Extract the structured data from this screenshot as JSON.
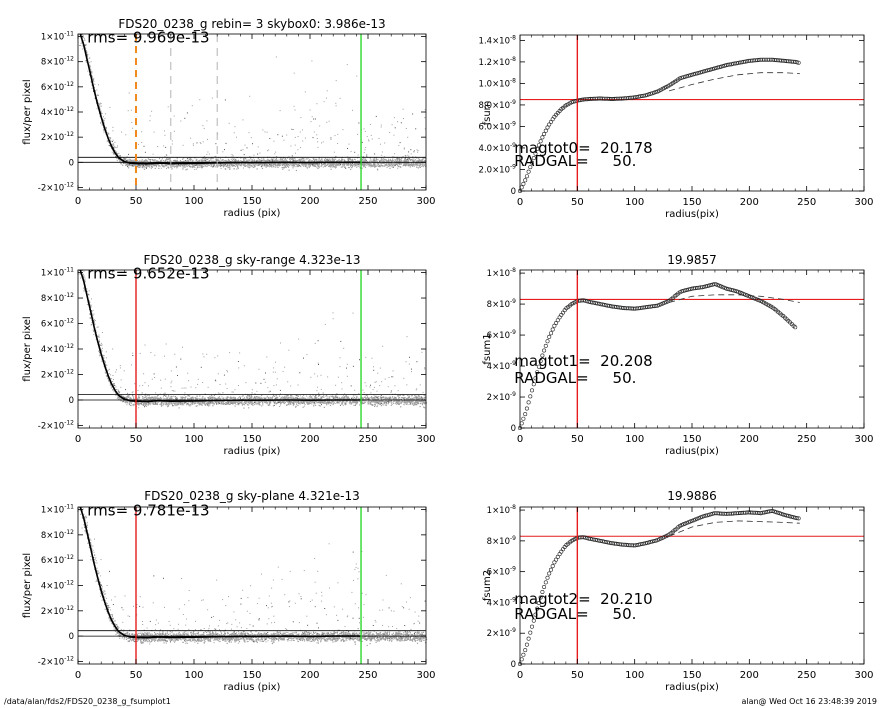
{
  "footer": {
    "left": "/data/alan/fds2/FDS20_0238_g_fsumplot1",
    "right": "alan@  Wed Oct 16 23:48:39 2019"
  },
  "colors": {
    "scatter": "#a0a0a0",
    "profile": "#000000",
    "red_line": "#e81c1c",
    "green_line": "#2ed82e",
    "orange_dash": "#f08a1e",
    "gray_dash": "#b4b4b4"
  },
  "chart_data": [
    {
      "id": "profile-1",
      "type": "scatter",
      "title": "FDS20_0238_g rebin= 3    skybox0:  3.986e-13",
      "xlabel": "radius (pix)",
      "ylabel": "flux/per pixel",
      "xlim": [
        0,
        300
      ],
      "ylim": [
        -2.2e-12,
        1.02e-11
      ],
      "x_ticks": [
        0,
        50,
        100,
        150,
        200,
        250,
        300
      ],
      "y_ticks": [
        {
          "v": 1e-11,
          "m": "1×10",
          "e": "-11"
        },
        {
          "v": 8e-12,
          "m": "8×10",
          "e": "-12"
        },
        {
          "v": 6e-12,
          "m": "6×10",
          "e": "-12"
        },
        {
          "v": 4e-12,
          "m": "4×10",
          "e": "-12"
        },
        {
          "v": 2e-12,
          "m": "2×10",
          "e": "-12"
        },
        {
          "v": 0,
          "m": "0",
          "e": ""
        },
        {
          "v": -2e-12,
          "m": "-2×10",
          "e": "-12"
        }
      ],
      "annotations": [
        {
          "text": "rms= 9.969e-13",
          "x": 8,
          "y": 1e-11
        }
      ],
      "vlines": [
        {
          "x": 50,
          "style": "orange-dash"
        },
        {
          "x": 80,
          "style": "gray-dash"
        },
        {
          "x": 120,
          "style": "gray-dash"
        },
        {
          "x": 244,
          "style": "green"
        }
      ],
      "hlines": [
        {
          "y": 4e-13
        },
        {
          "y": 0
        }
      ],
      "profile": {
        "x": [
          2,
          5,
          8,
          11,
          14,
          17,
          20,
          23,
          26,
          29,
          32,
          35,
          40,
          45,
          50,
          60,
          70,
          80,
          100,
          120,
          140,
          160,
          180,
          200,
          220,
          244
        ],
        "y": [
          1.02e-11,
          9.3e-12,
          8.1e-12,
          6.9e-12,
          5.7e-12,
          4.6e-12,
          3.6e-12,
          2.7e-12,
          1.9e-12,
          1.25e-12,
          7.5e-13,
          3.6e-13,
          6e-14,
          -6e-14,
          -1e-13,
          -1.2e-13,
          -6e-14,
          -1e-13,
          -8e-14,
          -4e-14,
          -2e-14,
          -2e-14,
          0,
          -2e-14,
          0,
          0
        ]
      },
      "scatter": {
        "upper_envelope": 1.2e-12,
        "lower_envelope": -1.3e-12
      }
    },
    {
      "id": "growth-1",
      "type": "scatter",
      "title": "",
      "xlabel": "radius(pix)",
      "ylabel": "fsum",
      "xlim": [
        0,
        300
      ],
      "ylim": [
        0,
        1.45e-08
      ],
      "x_ticks": [
        0,
        50,
        100,
        150,
        200,
        250,
        300
      ],
      "y_ticks": [
        {
          "v": 1.4e-08,
          "m": "1.4×10",
          "e": "-8"
        },
        {
          "v": 1.2e-08,
          "m": "1.2×10",
          "e": "-8"
        },
        {
          "v": 1e-08,
          "m": "1.0×10",
          "e": "-8"
        },
        {
          "v": 8e-09,
          "m": "8.0×10",
          "e": "-9"
        },
        {
          "v": 6e-09,
          "m": "6.0×10",
          "e": "-9"
        },
        {
          "v": 4e-09,
          "m": "4.0×10",
          "e": "-9"
        },
        {
          "v": 2e-09,
          "m": "2.0×10",
          "e": "-9"
        },
        {
          "v": 0,
          "m": "0",
          "e": ""
        }
      ],
      "annotations": [
        {
          "text": "magtot0=  20.178",
          "x": -5,
          "y": 4.1e-09
        },
        {
          "text": "RADGAL=     50.",
          "x": -5,
          "y": 2.9e-09
        }
      ],
      "vlines": [
        {
          "x": 50,
          "style": "red"
        }
      ],
      "hlines": [
        {
          "y": 8.5e-09
        }
      ],
      "curve": {
        "x": [
          0,
          5,
          10,
          15,
          20,
          25,
          30,
          35,
          40,
          45,
          50,
          55,
          60,
          70,
          80,
          90,
          100,
          110,
          120,
          130,
          140,
          150,
          160,
          170,
          180,
          190,
          200,
          210,
          220,
          230,
          240,
          244
        ],
        "y": [
          0,
          1.1e-09,
          2.5e-09,
          3.9e-09,
          5.1e-09,
          6.1e-09,
          6.9e-09,
          7.5e-09,
          7.95e-09,
          8.25e-09,
          8.4e-09,
          8.5e-09,
          8.55e-09,
          8.6e-09,
          8.55e-09,
          8.6e-09,
          8.7e-09,
          8.9e-09,
          9.25e-09,
          9.8e-09,
          1.05e-08,
          1.08e-08,
          1.11e-08,
          1.14e-08,
          1.17e-08,
          1.19e-08,
          1.21e-08,
          1.22e-08,
          1.22e-08,
          1.21e-08,
          1.2e-08,
          1.19e-08
        ]
      },
      "dashed": {
        "x": [
          130,
          150,
          170,
          190,
          210,
          230,
          244
        ],
        "y": [
          9.3e-09,
          9.9e-09,
          1.04e-08,
          1.08e-08,
          1.1e-08,
          1.1e-08,
          1.09e-08
        ]
      }
    },
    {
      "id": "profile-2",
      "type": "scatter",
      "title": "FDS20_0238_g sky-range  4.323e-13",
      "xlabel": "radius (pix)",
      "ylabel": "flux/per pixel",
      "xlim": [
        0,
        300
      ],
      "ylim": [
        -2.2e-12,
        1.02e-11
      ],
      "x_ticks": [
        0,
        50,
        100,
        150,
        200,
        250,
        300
      ],
      "y_ticks": [
        {
          "v": 1e-11,
          "m": "1×10",
          "e": "-11"
        },
        {
          "v": 8e-12,
          "m": "8×10",
          "e": "-12"
        },
        {
          "v": 6e-12,
          "m": "6×10",
          "e": "-12"
        },
        {
          "v": 4e-12,
          "m": "4×10",
          "e": "-12"
        },
        {
          "v": 2e-12,
          "m": "2×10",
          "e": "-12"
        },
        {
          "v": 0,
          "m": "0",
          "e": ""
        },
        {
          "v": -2e-12,
          "m": "-2×10",
          "e": "-12"
        }
      ],
      "annotations": [
        {
          "text": "rms= 9.652e-13",
          "x": 8,
          "y": 1e-11
        }
      ],
      "vlines": [
        {
          "x": 50,
          "style": "red"
        },
        {
          "x": 244,
          "style": "green"
        }
      ],
      "hlines": [
        {
          "y": 4.3e-13
        },
        {
          "y": 0
        }
      ],
      "profile": {
        "x": [
          2,
          5,
          8,
          11,
          14,
          17,
          20,
          23,
          26,
          29,
          32,
          35,
          40,
          45,
          50,
          60,
          70,
          80,
          100,
          120,
          140,
          160,
          180,
          200,
          220,
          244
        ],
        "y": [
          1.02e-11,
          9.3e-12,
          8.1e-12,
          6.9e-12,
          5.7e-12,
          4.6e-12,
          3.6e-12,
          2.7e-12,
          1.9e-12,
          1.25e-12,
          7.5e-13,
          3.6e-13,
          6e-14,
          -6e-14,
          -1e-13,
          -1.2e-13,
          -6e-14,
          -1e-13,
          -8e-14,
          -4e-14,
          -2e-14,
          -2e-14,
          0,
          -2e-14,
          0,
          0
        ]
      },
      "scatter": {
        "upper_envelope": 1.2e-12,
        "lower_envelope": -1.3e-12
      }
    },
    {
      "id": "growth-2",
      "type": "scatter",
      "title": "19.9857",
      "xlabel": "radius(pix)",
      "ylabel": "fsum1",
      "xlim": [
        0,
        300
      ],
      "ylim": [
        0,
        1.02e-08
      ],
      "x_ticks": [
        0,
        50,
        100,
        150,
        200,
        250,
        300
      ],
      "y_ticks": [
        {
          "v": 1e-08,
          "m": "1×10",
          "e": "-8"
        },
        {
          "v": 8e-09,
          "m": "8×10",
          "e": "-9"
        },
        {
          "v": 6e-09,
          "m": "6×10",
          "e": "-9"
        },
        {
          "v": 4e-09,
          "m": "4×10",
          "e": "-9"
        },
        {
          "v": 2e-09,
          "m": "2×10",
          "e": "-9"
        },
        {
          "v": 0,
          "m": "0",
          "e": ""
        }
      ],
      "annotations": [
        {
          "text": "magtot1=  20.208",
          "x": -5,
          "y": 4.4e-09
        },
        {
          "text": "RADGAL=     50.",
          "x": -5,
          "y": 3.3e-09
        }
      ],
      "vlines": [
        {
          "x": 50,
          "style": "red"
        }
      ],
      "hlines": [
        {
          "y": 8.3e-09
        }
      ],
      "curve": {
        "x": [
          0,
          5,
          10,
          15,
          20,
          25,
          30,
          35,
          40,
          45,
          50,
          55,
          60,
          70,
          80,
          90,
          100,
          110,
          120,
          130,
          140,
          150,
          160,
          170,
          180,
          190,
          200,
          210,
          220,
          230,
          240
        ],
        "y": [
          0,
          1e-09,
          2.3e-09,
          3.6e-09,
          4.8e-09,
          5.8e-09,
          6.6e-09,
          7.2e-09,
          7.7e-09,
          8e-09,
          8.2e-09,
          8.25e-09,
          8.15e-09,
          8e-09,
          7.85e-09,
          7.75e-09,
          7.7e-09,
          7.8e-09,
          7.9e-09,
          8.2e-09,
          8.8e-09,
          9e-09,
          9.1e-09,
          9.3e-09,
          9e-09,
          8.8e-09,
          8.5e-09,
          8.2e-09,
          7.8e-09,
          7.2e-09,
          6.5e-09
        ]
      },
      "dashed": {
        "x": [
          130,
          150,
          170,
          190,
          210,
          230,
          244
        ],
        "y": [
          8.1e-09,
          8.5e-09,
          8.6e-09,
          8.6e-09,
          8.5e-09,
          8.3e-09,
          8.1e-09
        ]
      }
    },
    {
      "id": "profile-3",
      "type": "scatter",
      "title": "FDS20_0238_g sky-plane  4.321e-13",
      "xlabel": "radius (pix)",
      "ylabel": "flux/per pixel",
      "xlim": [
        0,
        300
      ],
      "ylim": [
        -2.2e-12,
        1.02e-11
      ],
      "x_ticks": [
        0,
        50,
        100,
        150,
        200,
        250,
        300
      ],
      "y_ticks": [
        {
          "v": 1e-11,
          "m": "1×10",
          "e": "-11"
        },
        {
          "v": 8e-12,
          "m": "8×10",
          "e": "-12"
        },
        {
          "v": 6e-12,
          "m": "6×10",
          "e": "-12"
        },
        {
          "v": 4e-12,
          "m": "4×10",
          "e": "-12"
        },
        {
          "v": 2e-12,
          "m": "2×10",
          "e": "-12"
        },
        {
          "v": 0,
          "m": "0",
          "e": ""
        },
        {
          "v": -2e-12,
          "m": "-2×10",
          "e": "-12"
        }
      ],
      "annotations": [
        {
          "text": "rms= 9.781e-13",
          "x": 8,
          "y": 1e-11
        }
      ],
      "vlines": [
        {
          "x": 50,
          "style": "red"
        },
        {
          "x": 244,
          "style": "green"
        }
      ],
      "hlines": [
        {
          "y": 4.3e-13
        },
        {
          "y": 0
        }
      ],
      "profile": {
        "x": [
          2,
          5,
          8,
          11,
          14,
          17,
          20,
          23,
          26,
          29,
          32,
          35,
          40,
          45,
          50,
          60,
          70,
          80,
          100,
          120,
          140,
          160,
          180,
          200,
          220,
          244
        ],
        "y": [
          1.02e-11,
          9.3e-12,
          8.1e-12,
          6.9e-12,
          5.7e-12,
          4.6e-12,
          3.6e-12,
          2.7e-12,
          1.9e-12,
          1.25e-12,
          7.5e-13,
          3.6e-13,
          6e-14,
          -6e-14,
          -1e-13,
          -1.2e-13,
          -6e-14,
          -1e-13,
          -8e-14,
          -4e-14,
          -2e-14,
          -2e-14,
          0,
          -2e-14,
          0,
          0
        ]
      },
      "scatter": {
        "upper_envelope": 1.2e-12,
        "lower_envelope": -1.3e-12
      }
    },
    {
      "id": "growth-3",
      "type": "scatter",
      "title": "19.9886",
      "xlabel": "radius(pix)",
      "ylabel": "fsum2",
      "xlim": [
        0,
        300
      ],
      "ylim": [
        0,
        1.02e-08
      ],
      "x_ticks": [
        0,
        50,
        100,
        150,
        200,
        250,
        300
      ],
      "y_ticks": [
        {
          "v": 1e-08,
          "m": "1×10",
          "e": "-8"
        },
        {
          "v": 8e-09,
          "m": "8×10",
          "e": "-9"
        },
        {
          "v": 6e-09,
          "m": "6×10",
          "e": "-9"
        },
        {
          "v": 4e-09,
          "m": "4×10",
          "e": "-9"
        },
        {
          "v": 2e-09,
          "m": "2×10",
          "e": "-9"
        },
        {
          "v": 0,
          "m": "0",
          "e": ""
        }
      ],
      "annotations": [
        {
          "text": "magtot2=  20.210",
          "x": -5,
          "y": 4.3e-09
        },
        {
          "text": "RADGAL=     50.",
          "x": -5,
          "y": 3.3e-09
        }
      ],
      "vlines": [
        {
          "x": 50,
          "style": "red"
        }
      ],
      "hlines": [
        {
          "y": 8.3e-09
        }
      ],
      "curve": {
        "x": [
          0,
          5,
          10,
          15,
          20,
          25,
          30,
          35,
          40,
          45,
          50,
          55,
          60,
          70,
          80,
          90,
          100,
          110,
          120,
          130,
          140,
          150,
          160,
          170,
          180,
          190,
          200,
          210,
          220,
          230,
          240,
          244
        ],
        "y": [
          0,
          1e-09,
          2.3e-09,
          3.6e-09,
          4.8e-09,
          5.8e-09,
          6.6e-09,
          7.2e-09,
          7.7e-09,
          8e-09,
          8.2e-09,
          8.25e-09,
          8.15e-09,
          8e-09,
          7.85e-09,
          7.75e-09,
          7.7e-09,
          7.85e-09,
          8.05e-09,
          8.4e-09,
          9e-09,
          9.3e-09,
          9.6e-09,
          9.8e-09,
          9.75e-09,
          9.8e-09,
          9.85e-09,
          9.8e-09,
          9.95e-09,
          9.7e-09,
          9.5e-09,
          9.45e-09
        ]
      },
      "dashed": {
        "x": [
          130,
          150,
          170,
          190,
          210,
          230,
          244
        ],
        "y": [
          8.3e-09,
          8.9e-09,
          9.2e-09,
          9.3e-09,
          9.25e-09,
          9.2e-09,
          9.15e-09
        ]
      }
    }
  ]
}
